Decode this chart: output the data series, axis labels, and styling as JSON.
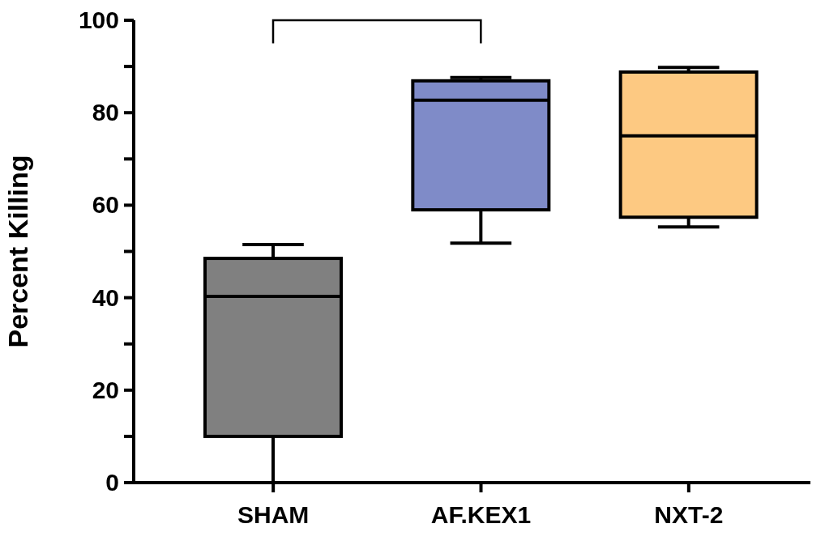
{
  "chart_data": {
    "type": "box",
    "ylabel": "Percent Killing",
    "categories": [
      "SHAM",
      "AF.KEX1",
      "NXT-2"
    ],
    "colors": [
      "#808080",
      "#7f8bc8",
      "#fdc982"
    ],
    "boxes": [
      {
        "low": 0,
        "q1": 10,
        "median": 40.3,
        "q3": 48.5,
        "high": 51.5
      },
      {
        "low": 51.8,
        "q1": 59,
        "median": 82.7,
        "q3": 86.9,
        "high": 87.6
      },
      {
        "low": 55.3,
        "q1": 57.4,
        "median": 75,
        "q3": 88.8,
        "high": 89.8
      }
    ],
    "ylim": [
      0,
      100
    ],
    "yticks": [
      0,
      {
        "value": 10,
        "label": null
      },
      20,
      {
        "value": 30,
        "label": null
      },
      40,
      {
        "value": 50,
        "label": null
      },
      60,
      {
        "value": 70,
        "label": null
      },
      80,
      {
        "value": 90,
        "label": null
      },
      100
    ]
  }
}
